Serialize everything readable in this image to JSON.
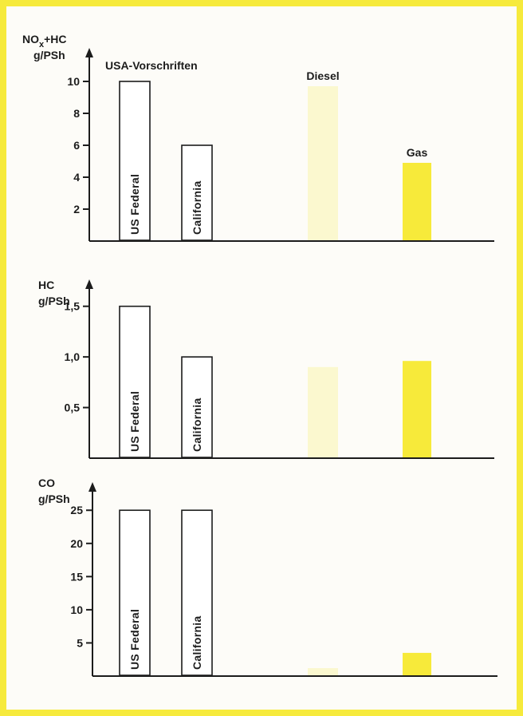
{
  "chart_data": [
    {
      "type": "bar",
      "ylabel_line1": "NO",
      "ylabel_sub": "x",
      "ylabel_line1_rest": "+HC",
      "ylabel_line2": "g/PSh",
      "ylim": [
        0,
        12
      ],
      "yticks": [
        2,
        4,
        6,
        8,
        10
      ],
      "ytick_labels": [
        "2",
        "4",
        "6",
        "8",
        "10"
      ],
      "categories": [
        "US Federal",
        "California",
        "Diesel",
        "Gas"
      ],
      "values": [
        10,
        6,
        9.7,
        4.9
      ],
      "bar_labels": [
        "US Federal",
        "California",
        "",
        ""
      ],
      "top_labels": [
        "",
        "",
        "Diesel",
        "Gas"
      ],
      "annotation": "USA-Vorschriften",
      "colors": [
        "#ffffff",
        "#ffffff",
        "#fbf8cf",
        "#f7ea3a"
      ]
    },
    {
      "type": "bar",
      "ylabel_line1": "HC",
      "ylabel_line2": "g/PSh",
      "ylim": [
        0,
        1.75
      ],
      "yticks": [
        0.5,
        1.0,
        1.5
      ],
      "ytick_labels": [
        "0,5",
        "1,0",
        "1,5"
      ],
      "categories": [
        "US Federal",
        "California",
        "Diesel",
        "Gas"
      ],
      "values": [
        1.5,
        1.0,
        0.9,
        0.96
      ],
      "bar_labels": [
        "US Federal",
        "California",
        "",
        ""
      ],
      "colors": [
        "#ffffff",
        "#ffffff",
        "#fbf8cf",
        "#f7ea3a"
      ]
    },
    {
      "type": "bar",
      "ylabel_line1": "CO",
      "ylabel_line2": "g/PSh",
      "ylim": [
        0,
        29
      ],
      "yticks": [
        5,
        10,
        15,
        20,
        25
      ],
      "ytick_labels": [
        "5",
        "10",
        "15",
        "20",
        "25"
      ],
      "categories": [
        "US Federal",
        "California",
        "Diesel",
        "Gas"
      ],
      "values": [
        25,
        25,
        1.2,
        3.5
      ],
      "bar_labels": [
        "US Federal",
        "California",
        "",
        ""
      ],
      "colors": [
        "#ffffff",
        "#ffffff",
        "#fbf8cf",
        "#f7ea3a"
      ]
    }
  ]
}
